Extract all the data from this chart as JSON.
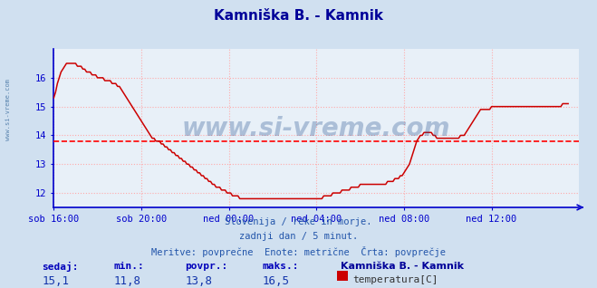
{
  "title": "Kamniška B. - Kamnik",
  "title_color": "#000099",
  "bg_color": "#d0e0f0",
  "plot_bg_color": "#e8f0f8",
  "grid_color": "#ffaaaa",
  "axis_color": "#0000cc",
  "line_color": "#cc0000",
  "avg_line_color": "#ff0000",
  "avg_value": 13.8,
  "y_min": 11.5,
  "y_max": 17.0,
  "y_ticks": [
    12,
    13,
    14,
    15,
    16
  ],
  "x_tick_labels": [
    "sob 16:00",
    "sob 20:00",
    "ned 00:00",
    "ned 04:00",
    "ned 08:00",
    "ned 12:00"
  ],
  "x_tick_positions": [
    0,
    48,
    96,
    144,
    192,
    240
  ],
  "subtitle1": "Slovenija / reke in morje.",
  "subtitle2": "zadnji dan / 5 minut.",
  "subtitle3": "Meritve: povprečne  Enote: metrične  Črta: povprečje",
  "label_sedaj": "sedaj:",
  "label_min": "min.:",
  "label_povpr": "povpr.:",
  "label_maks": "maks.:",
  "val_sedaj": "15,1",
  "val_min": "11,8",
  "val_povpr": "13,8",
  "val_maks": "16,5",
  "legend_title": "Kamniška B. - Kamnik",
  "legend_label": "temperatura[C]",
  "legend_color": "#cc0000",
  "watermark": "www.si-vreme.com",
  "watermark_color": "#1e4d8c",
  "watermark_alpha": 0.3,
  "temperature_data": [
    15.3,
    15.5,
    15.8,
    16.0,
    16.2,
    16.3,
    16.4,
    16.5,
    16.5,
    16.5,
    16.5,
    16.5,
    16.5,
    16.4,
    16.4,
    16.4,
    16.3,
    16.3,
    16.2,
    16.2,
    16.2,
    16.1,
    16.1,
    16.1,
    16.0,
    16.0,
    16.0,
    16.0,
    15.9,
    15.9,
    15.9,
    15.9,
    15.8,
    15.8,
    15.8,
    15.7,
    15.7,
    15.6,
    15.5,
    15.4,
    15.3,
    15.2,
    15.1,
    15.0,
    14.9,
    14.8,
    14.7,
    14.6,
    14.5,
    14.4,
    14.3,
    14.2,
    14.1,
    14.0,
    13.9,
    13.9,
    13.8,
    13.8,
    13.8,
    13.7,
    13.7,
    13.6,
    13.6,
    13.5,
    13.5,
    13.4,
    13.4,
    13.3,
    13.3,
    13.2,
    13.2,
    13.1,
    13.1,
    13.0,
    13.0,
    12.9,
    12.9,
    12.8,
    12.8,
    12.7,
    12.7,
    12.6,
    12.6,
    12.5,
    12.5,
    12.4,
    12.4,
    12.3,
    12.3,
    12.2,
    12.2,
    12.2,
    12.1,
    12.1,
    12.1,
    12.0,
    12.0,
    12.0,
    11.9,
    11.9,
    11.9,
    11.9,
    11.8,
    11.8,
    11.8,
    11.8,
    11.8,
    11.8,
    11.8,
    11.8,
    11.8,
    11.8,
    11.8,
    11.8,
    11.8,
    11.8,
    11.8,
    11.8,
    11.8,
    11.8,
    11.8,
    11.8,
    11.8,
    11.8,
    11.8,
    11.8,
    11.8,
    11.8,
    11.8,
    11.8,
    11.8,
    11.8,
    11.8,
    11.8,
    11.8,
    11.8,
    11.8,
    11.8,
    11.8,
    11.8,
    11.8,
    11.8,
    11.8,
    11.8,
    11.8,
    11.8,
    11.8,
    11.8,
    11.9,
    11.9,
    11.9,
    11.9,
    11.9,
    12.0,
    12.0,
    12.0,
    12.0,
    12.0,
    12.1,
    12.1,
    12.1,
    12.1,
    12.1,
    12.2,
    12.2,
    12.2,
    12.2,
    12.2,
    12.3,
    12.3,
    12.3,
    12.3,
    12.3,
    12.3,
    12.3,
    12.3,
    12.3,
    12.3,
    12.3,
    12.3,
    12.3,
    12.3,
    12.3,
    12.4,
    12.4,
    12.4,
    12.4,
    12.5,
    12.5,
    12.5,
    12.6,
    12.6,
    12.7,
    12.8,
    12.9,
    13.0,
    13.2,
    13.4,
    13.6,
    13.8,
    13.9,
    14.0,
    14.0,
    14.1,
    14.1,
    14.1,
    14.1,
    14.1,
    14.0,
    14.0,
    13.9,
    13.9,
    13.9,
    13.9,
    13.9,
    13.9,
    13.9,
    13.9,
    13.9,
    13.9,
    13.9,
    13.9,
    13.9,
    14.0,
    14.0,
    14.0,
    14.1,
    14.2,
    14.3,
    14.4,
    14.5,
    14.6,
    14.7,
    14.8,
    14.9,
    14.9,
    14.9,
    14.9,
    14.9,
    14.9,
    15.0,
    15.0,
    15.0,
    15.0,
    15.0,
    15.0,
    15.0,
    15.0,
    15.0,
    15.0,
    15.0,
    15.0,
    15.0,
    15.0,
    15.0,
    15.0,
    15.0,
    15.0,
    15.0,
    15.0,
    15.0,
    15.0,
    15.0,
    15.0,
    15.0,
    15.0,
    15.0,
    15.0,
    15.0,
    15.0,
    15.0,
    15.0,
    15.0,
    15.0,
    15.0,
    15.0,
    15.0,
    15.0,
    15.0,
    15.1,
    15.1,
    15.1,
    15.1
  ]
}
